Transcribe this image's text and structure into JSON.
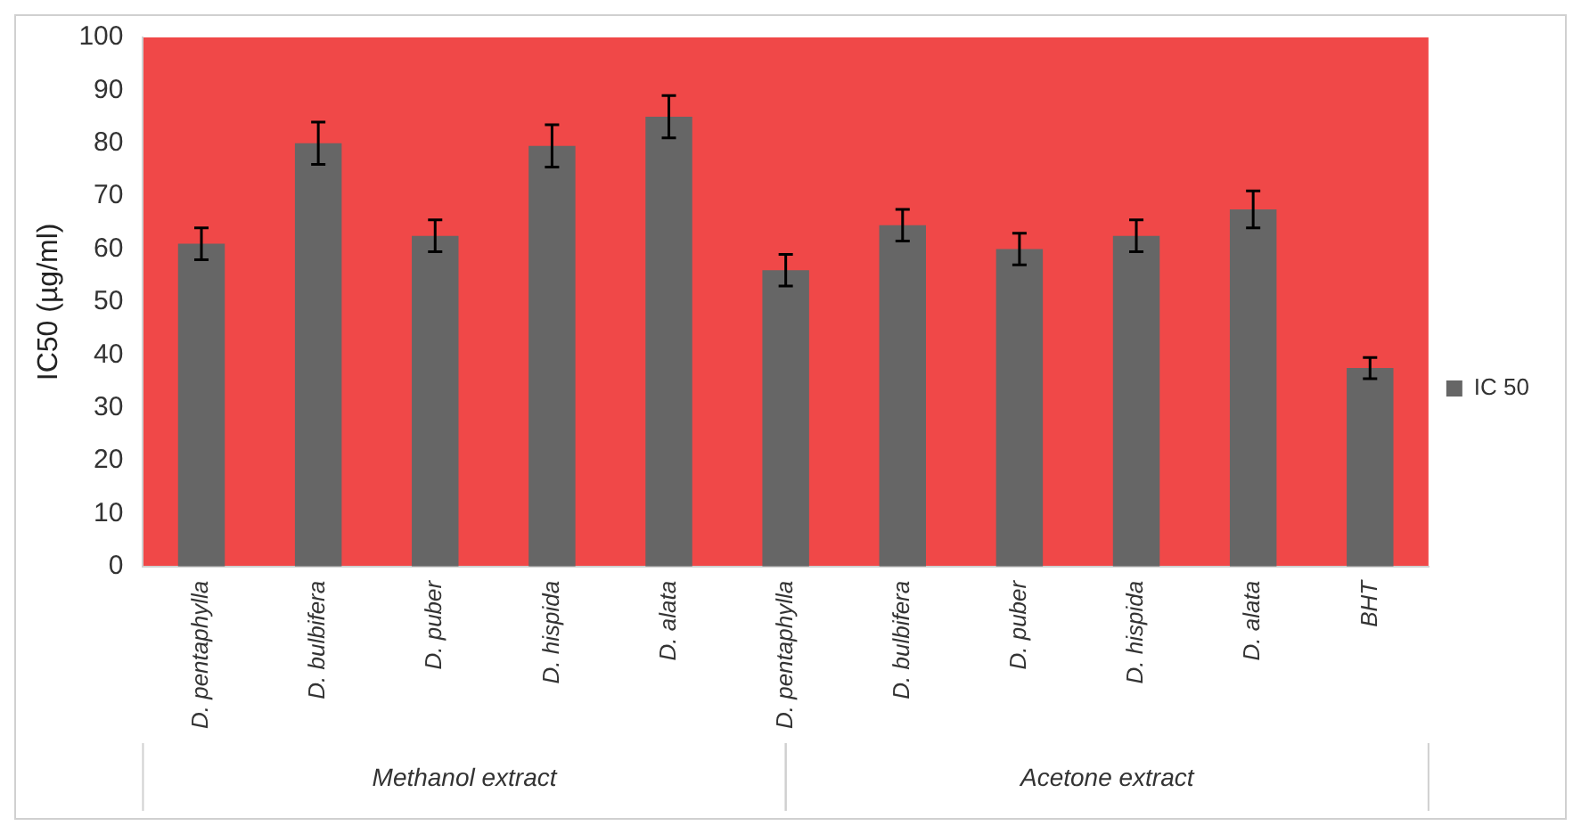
{
  "chart_data": {
    "type": "bar",
    "ylabel": "IC50 (µg/ml)",
    "categories": [
      "D. pentaphylla",
      "D. bulbifera",
      "D. puber",
      "D. hispida",
      "D. alata",
      "D. pentaphylla",
      "D. bulbifera",
      "D. puber",
      "D. hispida",
      "D. alata",
      "BHT"
    ],
    "series": [
      {
        "name": "IC 50",
        "color": "#666666",
        "values": [
          61,
          80,
          62.5,
          79.5,
          85,
          56,
          64.5,
          60,
          62.5,
          67.5,
          37.5
        ],
        "errors": [
          3,
          4,
          3,
          4,
          4,
          3,
          3,
          3,
          3,
          3.5,
          2
        ]
      }
    ],
    "ylim": [
      0,
      100
    ],
    "yticks": [
      0,
      10,
      20,
      30,
      40,
      50,
      60,
      70,
      80,
      90,
      100
    ],
    "legend": "right",
    "grid": false,
    "annotations": [
      "Methanol extract",
      "Acetone extract"
    ]
  }
}
